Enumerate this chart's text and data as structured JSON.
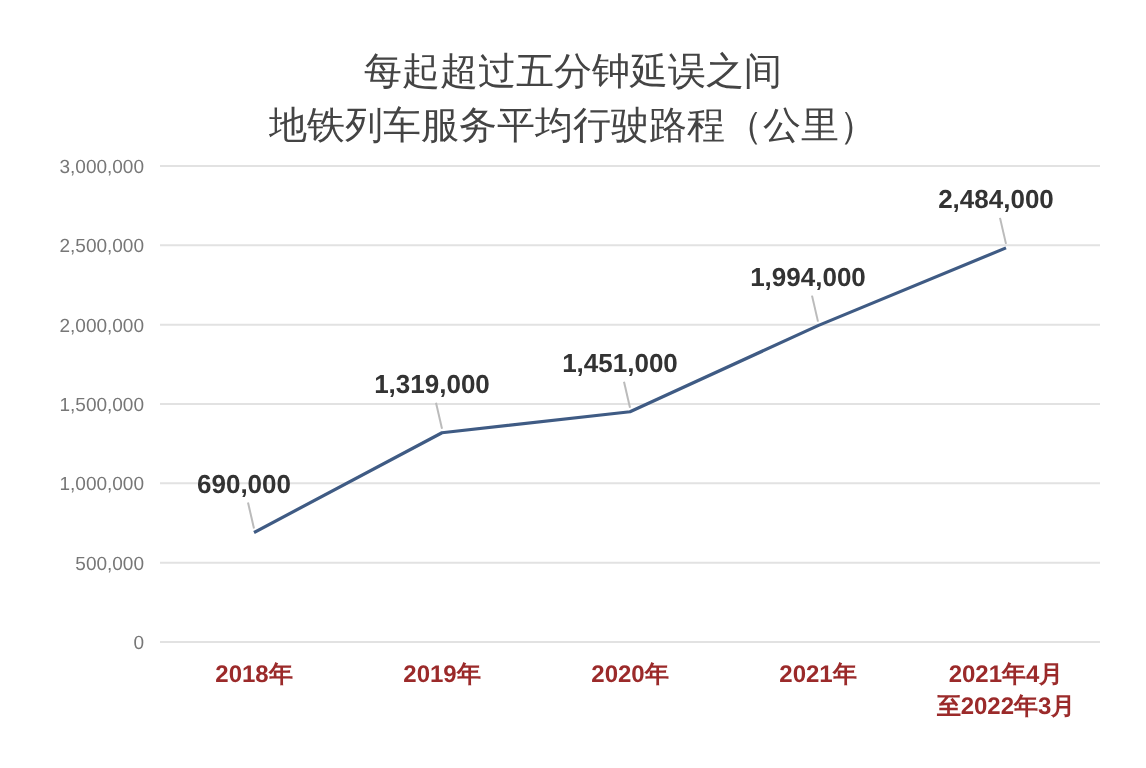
{
  "chart_data": {
    "type": "line",
    "title": "每起超过五分钟延误之间",
    "subtitle": "地铁列车服务平均行驶路程（公里）",
    "categories": [
      "2018年",
      "2019年",
      "2020年",
      "2021年",
      "2021年4月至2022年3月"
    ],
    "series": [
      {
        "color": "#3f5b84",
        "values": [
          690000,
          1319000,
          1451000,
          1994000,
          2484000
        ]
      }
    ],
    "ylim": [
      0,
      3000000
    ],
    "yticks": [
      {
        "value": 0,
        "label": "0"
      },
      {
        "value": 500000,
        "label": "500,000"
      },
      {
        "value": 1000000,
        "label": "1,000,000"
      },
      {
        "value": 1500000,
        "label": "1,500,000"
      },
      {
        "value": 2000000,
        "label": "2,000,000"
      },
      {
        "value": 2500000,
        "label": "2,500,000"
      },
      {
        "value": 3000000,
        "label": "3,000,000"
      }
    ],
    "value_labels": [
      "690,000",
      "1,319,000",
      "1,451,000",
      "1,994,000",
      "2,484,000"
    ],
    "grid": "y",
    "marker": "none"
  }
}
